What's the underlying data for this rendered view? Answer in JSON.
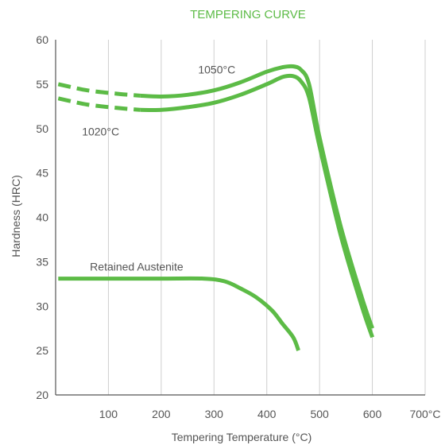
{
  "chart_data": {
    "type": "line",
    "title": "TEMPERING CURVE",
    "xlabel": "Tempering Temperature (°C)",
    "ylabel": "Hardness (HRC)",
    "xlim": [
      0,
      700
    ],
    "ylim": [
      20,
      60
    ],
    "x_ticks": [
      {
        "value": 100,
        "label": "100"
      },
      {
        "value": 200,
        "label": "200"
      },
      {
        "value": 300,
        "label": "300"
      },
      {
        "value": 400,
        "label": "400"
      },
      {
        "value": 500,
        "label": "500"
      },
      {
        "value": 600,
        "label": "600"
      },
      {
        "value": 700,
        "label": "700°C"
      }
    ],
    "y_ticks": [
      {
        "value": 20,
        "label": "20"
      },
      {
        "value": 25,
        "label": "25"
      },
      {
        "value": 30,
        "label": "30"
      },
      {
        "value": 35,
        "label": "35"
      },
      {
        "value": 40,
        "label": "40"
      },
      {
        "value": 45,
        "label": "45"
      },
      {
        "value": 50,
        "label": "50"
      },
      {
        "value": 55,
        "label": "55"
      },
      {
        "value": 60,
        "label": "60"
      }
    ],
    "grid": "vertical",
    "color": "#5cbb46",
    "series": [
      {
        "name": "1050°C",
        "dashed_until": 160,
        "points": [
          [
            5,
            55.0
          ],
          [
            60,
            54.3
          ],
          [
            120,
            53.9
          ],
          [
            160,
            53.7
          ],
          [
            200,
            53.6
          ],
          [
            250,
            53.8
          ],
          [
            300,
            54.3
          ],
          [
            350,
            55.2
          ],
          [
            400,
            56.4
          ],
          [
            430,
            56.9
          ],
          [
            450,
            57.0
          ],
          [
            465,
            56.6
          ],
          [
            480,
            55.0
          ],
          [
            500,
            49.0
          ],
          [
            540,
            39.0
          ],
          [
            580,
            31.0
          ],
          [
            600,
            27.5
          ]
        ]
      },
      {
        "name": "1020°C",
        "dashed_until": 160,
        "points": [
          [
            5,
            53.4
          ],
          [
            60,
            52.7
          ],
          [
            120,
            52.3
          ],
          [
            160,
            52.1
          ],
          [
            200,
            52.1
          ],
          [
            250,
            52.4
          ],
          [
            300,
            52.9
          ],
          [
            350,
            53.8
          ],
          [
            400,
            55.0
          ],
          [
            430,
            55.8
          ],
          [
            450,
            55.9
          ],
          [
            465,
            55.3
          ],
          [
            480,
            53.5
          ],
          [
            500,
            48.0
          ],
          [
            540,
            38.0
          ],
          [
            580,
            30.0
          ],
          [
            600,
            26.5
          ]
        ]
      },
      {
        "name": "Retained Austenite",
        "dashed_until": null,
        "points": [
          [
            5,
            33.1
          ],
          [
            100,
            33.1
          ],
          [
            200,
            33.1
          ],
          [
            280,
            33.1
          ],
          [
            320,
            32.8
          ],
          [
            350,
            32.0
          ],
          [
            380,
            31.0
          ],
          [
            410,
            29.5
          ],
          [
            430,
            28.0
          ],
          [
            450,
            26.5
          ],
          [
            460,
            25.0
          ]
        ]
      }
    ],
    "annotations": [
      {
        "text": "1050°C",
        "x": 270,
        "y": 56.2
      },
      {
        "text": "1020°C",
        "x": 50,
        "y": 49.2
      },
      {
        "text": "Retained Austenite",
        "x": 65,
        "y": 34.0
      }
    ]
  }
}
